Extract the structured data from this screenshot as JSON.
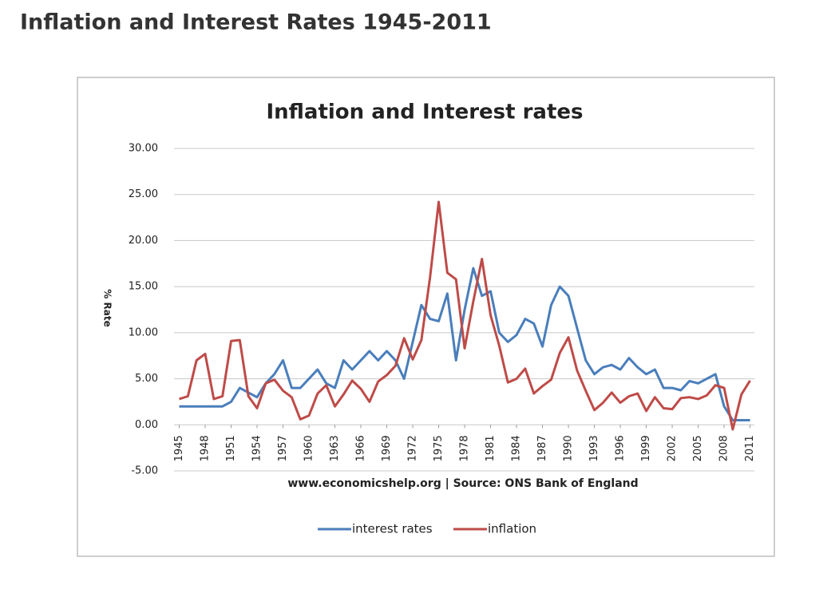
{
  "page": {
    "title": "Inflation and Interest Rates 1945-2011"
  },
  "chart_data": {
    "type": "line",
    "title": "Inflation and Interest rates",
    "ylabel": "% Rate",
    "source": "www.economicshelp.org | Source: ONS Bank of England",
    "x": [
      1945,
      1946,
      1947,
      1948,
      1949,
      1950,
      1951,
      1952,
      1953,
      1954,
      1955,
      1956,
      1957,
      1958,
      1959,
      1960,
      1961,
      1962,
      1963,
      1964,
      1965,
      1966,
      1967,
      1968,
      1969,
      1970,
      1971,
      1972,
      1973,
      1974,
      1975,
      1976,
      1977,
      1978,
      1979,
      1980,
      1981,
      1982,
      1983,
      1984,
      1985,
      1986,
      1987,
      1988,
      1989,
      1990,
      1991,
      1992,
      1993,
      1994,
      1995,
      1996,
      1997,
      1998,
      1999,
      2000,
      2001,
      2002,
      2003,
      2004,
      2005,
      2006,
      2007,
      2008,
      2009,
      2010,
      2011
    ],
    "series": [
      {
        "name": "interest rates",
        "color": "#4a7ebb",
        "values": [
          2,
          2,
          2,
          2,
          2,
          2,
          2.5,
          4,
          3.5,
          3,
          4.5,
          5.5,
          7,
          4,
          4,
          5,
          6,
          4.5,
          4,
          7,
          6,
          7,
          8,
          7,
          8,
          7,
          5,
          9,
          13,
          11.5,
          11.25,
          14.25,
          7,
          12.5,
          17,
          14,
          14.5,
          10,
          9,
          9.75,
          11.5,
          11,
          8.5,
          13,
          15,
          14,
          10.5,
          7,
          5.5,
          6.25,
          6.5,
          6,
          7.25,
          6.25,
          5.5,
          6,
          4,
          4,
          3.75,
          4.75,
          4.5,
          5,
          5.5,
          2,
          0.5,
          0.5,
          0.5
        ]
      },
      {
        "name": "inflation",
        "color": "#be4b48",
        "values": [
          2.8,
          3.1,
          7,
          7.7,
          2.8,
          3.1,
          9.1,
          9.2,
          3.1,
          1.8,
          4.5,
          4.9,
          3.7,
          3,
          0.6,
          1,
          3.4,
          4.3,
          2,
          3.3,
          4.8,
          3.9,
          2.5,
          4.7,
          5.4,
          6.4,
          9.4,
          7.1,
          9.2,
          16,
          24.2,
          16.5,
          15.8,
          8.3,
          13.4,
          18,
          11.9,
          8.6,
          4.6,
          5,
          6.1,
          3.4,
          4.2,
          4.9,
          7.8,
          9.5,
          5.9,
          3.7,
          1.6,
          2.4,
          3.5,
          2.4,
          3.1,
          3.4,
          1.5,
          3,
          1.8,
          1.7,
          2.9,
          3,
          2.8,
          3.2,
          4.3,
          4,
          -0.5,
          3.3,
          4.8
        ]
      }
    ],
    "xlim": [
      1944.4,
      2011.5
    ],
    "xticks": [
      1945,
      1948,
      1951,
      1954,
      1957,
      1960,
      1963,
      1966,
      1969,
      1972,
      1975,
      1978,
      1981,
      1984,
      1987,
      1990,
      1993,
      1996,
      1999,
      2002,
      2005,
      2008,
      2011
    ],
    "ylim": [
      -5,
      30
    ],
    "yticks": [
      {
        "value": -5,
        "label": "-5.00"
      },
      {
        "value": 0,
        "label": "0.00"
      },
      {
        "value": 5,
        "label": "5.00"
      },
      {
        "value": 10,
        "label": "10.00"
      },
      {
        "value": 15,
        "label": "15.00"
      },
      {
        "value": 20,
        "label": "20.00"
      },
      {
        "value": 25,
        "label": "25.00"
      },
      {
        "value": 30,
        "label": "30.00"
      }
    ],
    "grid": true,
    "legend": "bottom"
  }
}
